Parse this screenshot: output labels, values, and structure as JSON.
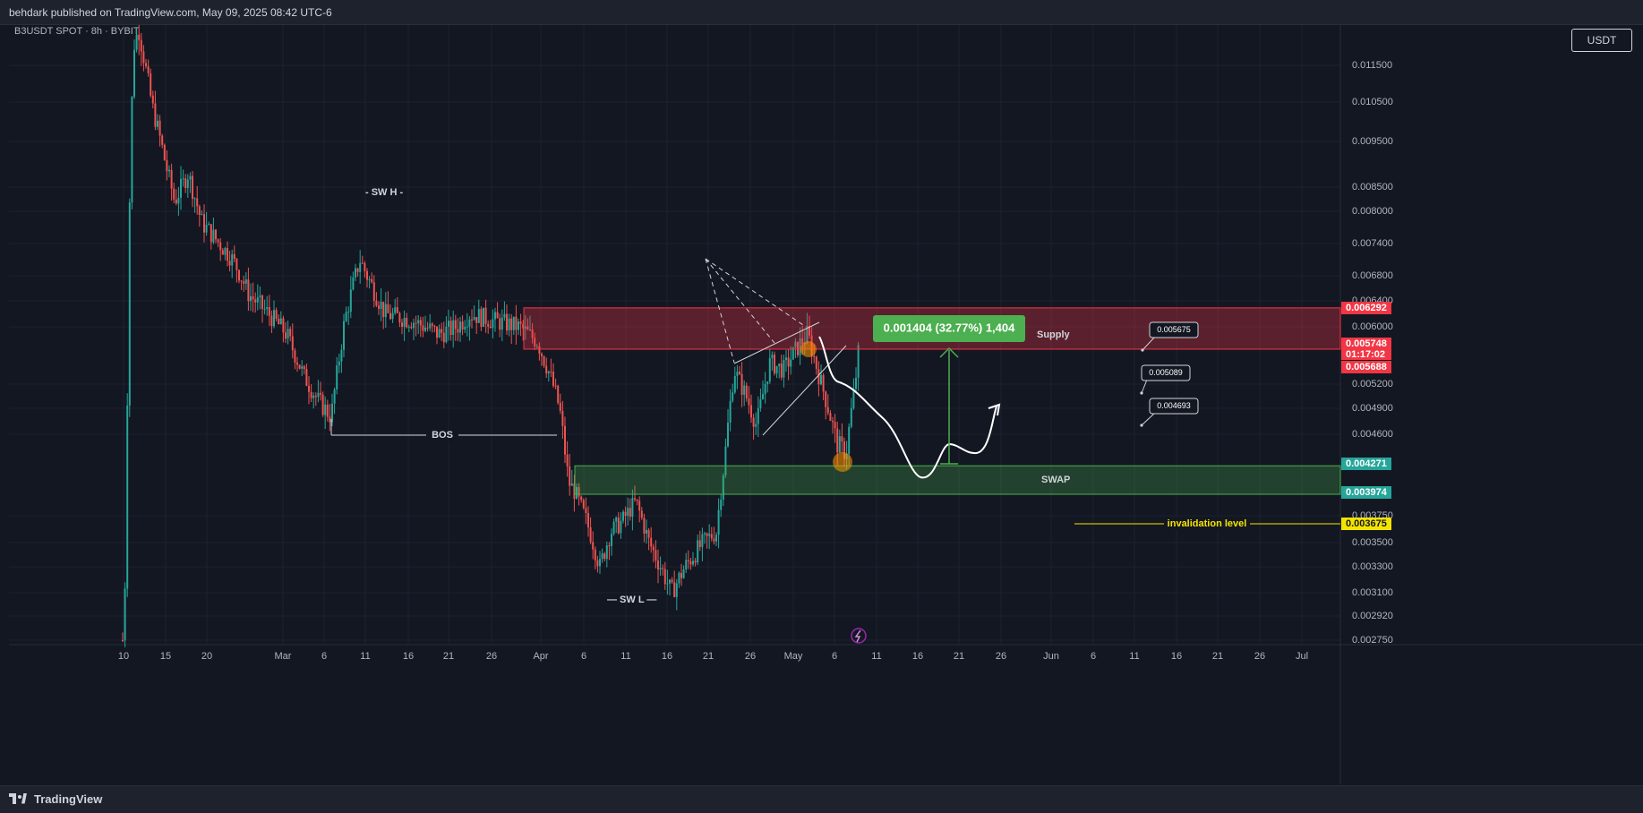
{
  "header": {
    "publisher": "behdark published on TradingView.com, May 09, 2025 08:42 UTC-6"
  },
  "footer": {
    "brand": "TradingView"
  },
  "chart_data": {
    "type": "candlestick",
    "symbol": "B3USDT SPOT · 8h · BYBIT",
    "unit": "USDT",
    "price_ticks": [
      "0.011500",
      "0.010500",
      "0.009500",
      "0.008500",
      "0.008000",
      "0.007400",
      "0.006800",
      "0.006400",
      "0.006000",
      "0.005200",
      "0.004900",
      "0.004600",
      "0.003750",
      "0.003500",
      "0.003300",
      "0.003100",
      "0.002920",
      "0.002750"
    ],
    "time_ticks": [
      "10",
      "15",
      "20",
      "Mar",
      "6",
      "11",
      "16",
      "21",
      "26",
      "Apr",
      "6",
      "11",
      "16",
      "21",
      "26",
      "May",
      "6",
      "11",
      "16",
      "21",
      "26",
      "Jun",
      "6",
      "11",
      "16",
      "21",
      "26",
      "Jul"
    ],
    "price_labels": [
      {
        "value": "0.006292",
        "color": "#f23645"
      },
      {
        "value": "0.005748",
        "color": "#f23645"
      },
      {
        "value": "01:17:02",
        "color": "#f23645"
      },
      {
        "value": "0.005688",
        "color": "#f23645"
      },
      {
        "value": "0.004271",
        "color": "#26a69a"
      },
      {
        "value": "0.003974",
        "color": "#26a69a"
      },
      {
        "value": "0.003675",
        "color": "#f5e400"
      }
    ],
    "zones": {
      "supply": {
        "label": "Supply",
        "top": 0.006292,
        "bottom": 0.005688
      },
      "swap": {
        "label": "SWAP",
        "top": 0.004271,
        "bottom": 0.003974
      }
    },
    "invalidation": {
      "label": "invalidation level",
      "value": 0.003675
    },
    "measure_label": "0.001404 (32.77%) 1,404",
    "annotations": {
      "sw_high": "SW H",
      "sw_low": "SW L",
      "bos": "BOS"
    },
    "target_labels": [
      "0.005675",
      "0.005089",
      "0.004693"
    ],
    "colors": {
      "up": "#26a69a",
      "down": "#ef5350",
      "bg": "#131722",
      "grid": "#1e2230"
    }
  }
}
